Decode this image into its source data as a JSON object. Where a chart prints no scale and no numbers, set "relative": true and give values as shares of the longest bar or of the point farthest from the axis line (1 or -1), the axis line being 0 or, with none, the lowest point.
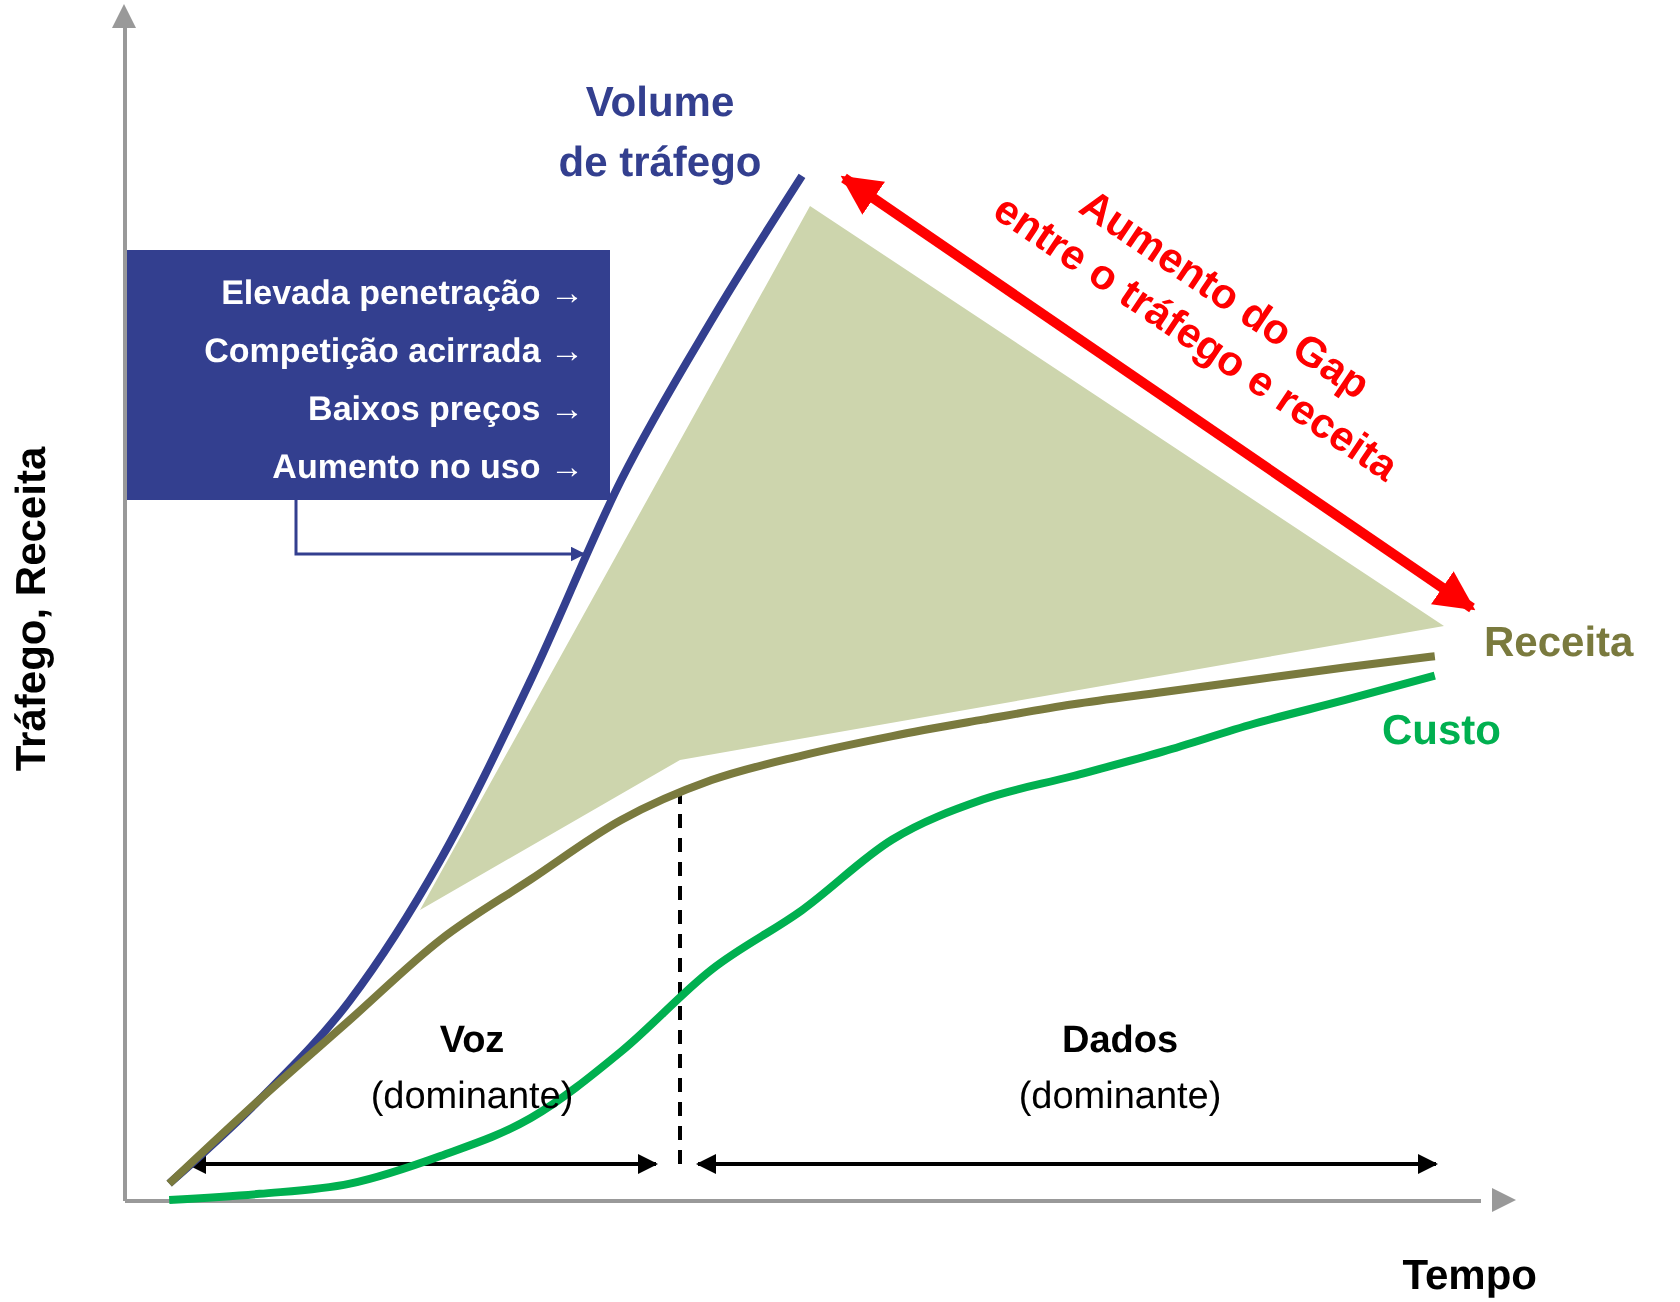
{
  "chart_data": {
    "type": "line",
    "relative": true,
    "xlabel": "Tempo",
    "ylabel": "Tráfego, Receita",
    "categories": [
      null,
      null,
      null,
      null,
      null,
      null,
      null,
      null,
      null,
      null,
      null,
      null,
      null,
      null,
      null
    ],
    "series": [
      {
        "name": "Volume de tráfego",
        "color": "#333f8f",
        "values": [
          0.016,
          0.098,
          0.195,
          0.332,
          0.508,
          0.703,
          0.859,
          1,
          null,
          null,
          null,
          null,
          null,
          null,
          null
        ]
      },
      {
        "name": "Receita",
        "color": "#7a7a3e",
        "values": [
          0.016,
          0.098,
          0.176,
          0.254,
          0.313,
          0.371,
          0.41,
          0.434,
          0.453,
          0.469,
          0.484,
          0.496,
          0.508,
          0.52,
          0.531
        ]
      },
      {
        "name": "Custo",
        "color": "#00b050",
        "values": [
          0,
          0.006,
          0.016,
          0.043,
          0.08,
          0.145,
          0.225,
          0.283,
          0.352,
          0.391,
          0.414,
          0.438,
          0.465,
          0.488,
          0.512
        ]
      }
    ],
    "annotations": [
      "Elevada penetração →",
      "Competição acirrada →",
      "Baixos preços →",
      "Aumento no uso →",
      "Aumento do Gap entre o tráfego e receita",
      "Voz (dominante)",
      "Dados (dominante)"
    ]
  }
}
